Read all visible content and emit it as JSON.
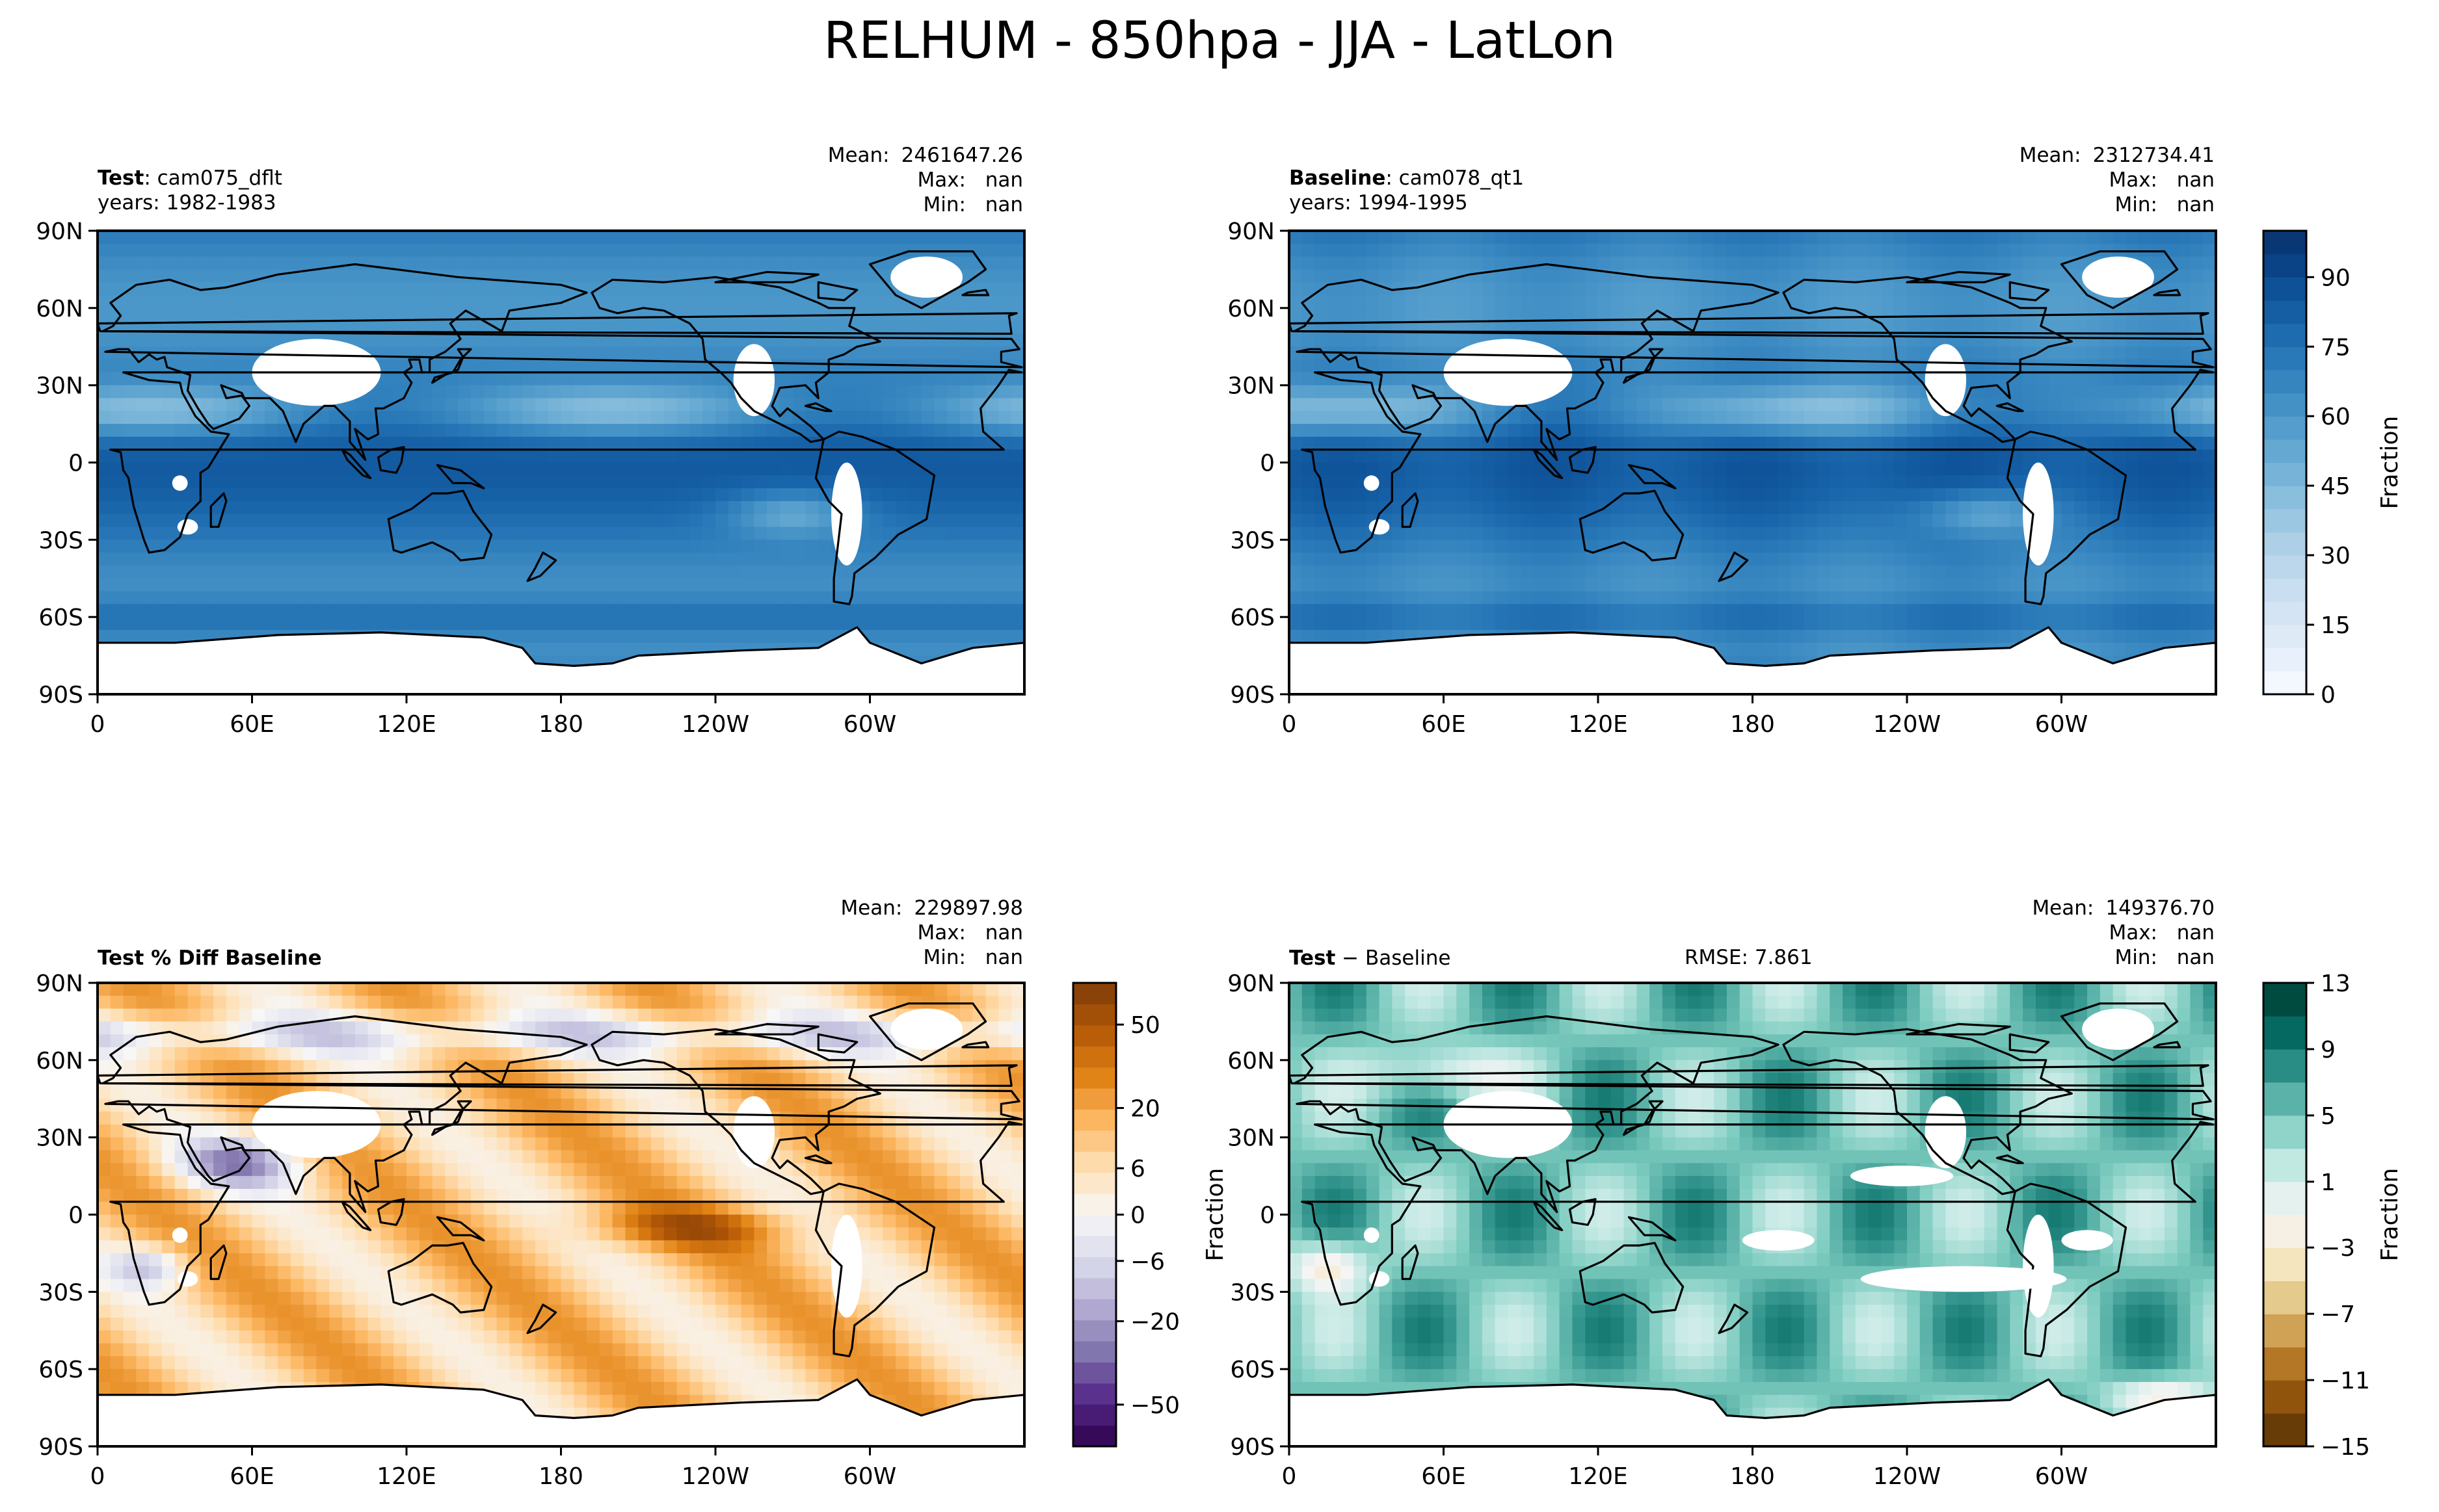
{
  "figure": {
    "title": "RELHUM - 850hpa - JJA - LatLon"
  },
  "colors": {
    "blues": [
      "#f7fbff",
      "#e3eef9",
      "#cfe1f2",
      "#b5d4e9",
      "#93c3df",
      "#6daed5",
      "#4b97c9",
      "#2f7fbc",
      "#1864aa",
      "#0a4a90",
      "#08306b"
    ],
    "purple_orange": [
      "#2d004b",
      "#542788",
      "#8073ac",
      "#b2abd2",
      "#d8daeb",
      "#f7f7f7",
      "#fee0b6",
      "#fdb863",
      "#e08214",
      "#b35806",
      "#7f3b08"
    ],
    "brown_teal": [
      "#543005",
      "#8c510a",
      "#bf812d",
      "#dfc27d",
      "#f6e8c3",
      "#f5f5f5",
      "#c7eae5",
      "#80cdc1",
      "#35978f",
      "#01665e",
      "#003c30"
    ],
    "land_mask": "#ffffff",
    "coast": "#000000"
  },
  "chart_data": [
    {
      "type": "heatmap",
      "panel": "test",
      "title_bold": "Test",
      "title_rest": ": cam075_dflt",
      "subtitle": "years: 1982-1983",
      "stats": {
        "mean_label": "Mean:",
        "mean": "2461647.26",
        "max_label": "Max:",
        "max": "nan",
        "min_label": "Min:",
        "min": "nan"
      },
      "xlabel": "",
      "ylabel": "",
      "xticks": [
        "0",
        "60E",
        "120E",
        "180",
        "120W",
        "60W"
      ],
      "yticks": [
        "90N",
        "60N",
        "30N",
        "0",
        "30S",
        "60S",
        "90S"
      ],
      "xlim": [
        0,
        360
      ],
      "ylim": [
        -90,
        90
      ],
      "colormap": "blues"
    },
    {
      "type": "heatmap",
      "panel": "baseline",
      "title_bold": "Baseline",
      "title_rest": ": cam078_qt1",
      "subtitle": "years: 1994-1995",
      "stats": {
        "mean_label": "Mean:",
        "mean": "2312734.41",
        "max_label": "Max:",
        "max": "nan",
        "min_label": "Min:",
        "min": "nan"
      },
      "xticks": [
        "0",
        "60E",
        "120E",
        "180",
        "120W",
        "60W"
      ],
      "yticks": [
        "90N",
        "60N",
        "30N",
        "0",
        "30S",
        "60S",
        "90S"
      ],
      "xlim": [
        0,
        360
      ],
      "ylim": [
        -90,
        90
      ],
      "colormap": "blues",
      "colorbar": {
        "label": "Fraction",
        "ticks": [
          "0",
          "15",
          "30",
          "45",
          "60",
          "75",
          "90"
        ],
        "range": [
          0,
          100
        ]
      }
    },
    {
      "type": "heatmap",
      "panel": "pctdiff",
      "title_bold": "Test % Diff Baseline",
      "stats": {
        "mean_label": "Mean:",
        "mean": "229897.98",
        "max_label": "Max:",
        "max": "nan",
        "min_label": "Min:",
        "min": "nan"
      },
      "xticks": [
        "0",
        "60E",
        "120E",
        "180",
        "120W",
        "60W"
      ],
      "yticks": [
        "90N",
        "60N",
        "30N",
        "0",
        "30S",
        "60S",
        "90S"
      ],
      "xlim": [
        0,
        360
      ],
      "ylim": [
        -90,
        90
      ],
      "colormap": "purple_orange",
      "colorbar": {
        "label": "",
        "ticks": [
          "50",
          "20",
          "6",
          "0",
          "−6",
          "−20",
          "−50"
        ],
        "range": [
          -60,
          60
        ]
      }
    },
    {
      "type": "heatmap",
      "panel": "diff",
      "title_bold": "Test",
      "title_rest": " − Baseline",
      "rmse": "RMSE: 7.861",
      "stats": {
        "mean_label": "Mean:",
        "mean": "149376.70",
        "max_label": "Max:",
        "max": "nan",
        "min_label": "Min:",
        "min": "nan"
      },
      "ylabel": "Fraction",
      "xticks": [
        "0",
        "60E",
        "120E",
        "180",
        "120W",
        "60W"
      ],
      "yticks": [
        "90N",
        "60N",
        "30N",
        "0",
        "30S",
        "60S",
        "90S"
      ],
      "xlim": [
        0,
        360
      ],
      "ylim": [
        -90,
        90
      ],
      "colormap": "brown_teal",
      "colorbar": {
        "label": "Fraction",
        "ticks": [
          "13",
          "9",
          "5",
          "1",
          "−3",
          "−7",
          "−11",
          "−15"
        ],
        "range": [
          -15,
          13
        ]
      }
    }
  ]
}
